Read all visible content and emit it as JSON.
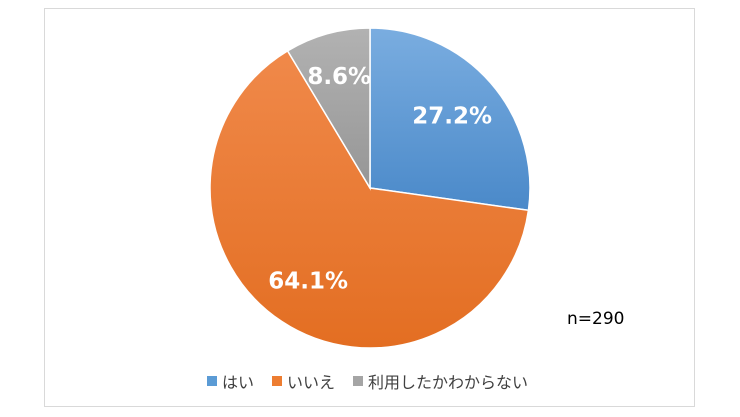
{
  "chart_data": {
    "type": "pie",
    "title": "",
    "slices": [
      {
        "label": "はい",
        "value": 27.2,
        "display": "27.2%",
        "color": "#5b9bd5"
      },
      {
        "label": "いいえ",
        "value": 64.1,
        "display": "64.1%",
        "color": "#ed7d31"
      },
      {
        "label": "利用したかわからない",
        "value": 8.6,
        "display": "8.6%",
        "color": "#a5a5a5"
      }
    ],
    "start_angle_deg": 0,
    "direction": "clockwise",
    "legend_position": "bottom",
    "annotation": "n=290"
  }
}
